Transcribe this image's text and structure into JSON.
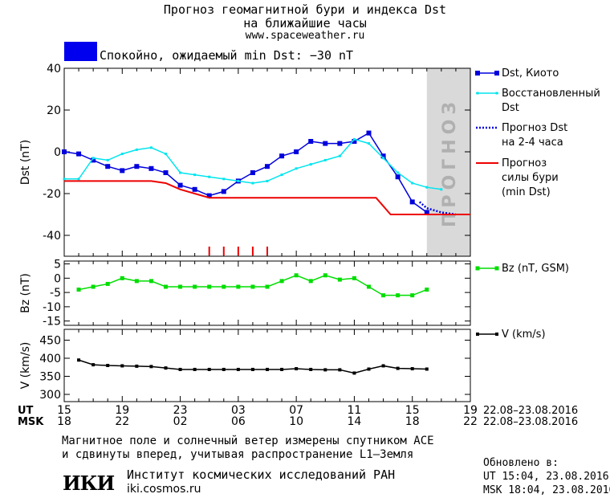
{
  "title": {
    "line1": "Прогноз геомагнитной бури и индекса Dst",
    "line2": "на ближайшие часы",
    "url": "www.spaceweather.ru"
  },
  "status": {
    "text": "Спокойно, ожидаемый min Dst: −30 nT",
    "color": "#0000ee"
  },
  "forecast_band_label": "ПРОГНОЗ",
  "colors": {
    "dst_kyoto": "#0000dd",
    "dst_restored": "#00e5ee",
    "dst_forecast": "#0000dd",
    "storm_forecast": "#ee0000",
    "bz": "#00dd00",
    "v": "#000000",
    "forecast_band": "#d9d9d9"
  },
  "chart_data": [
    {
      "type": "line",
      "name": "dst-panel",
      "ylabel": "Dst (nT)",
      "ylim": [
        -50,
        40
      ],
      "xlim": [
        15,
        43
      ],
      "yticks": [
        40,
        20,
        0,
        -20,
        -40
      ],
      "forecast_region": [
        40,
        43
      ],
      "series": [
        {
          "name": "Dst, Киото",
          "legend": [
            "Dst, Киото"
          ],
          "x": [
            15,
            16,
            17,
            18,
            19,
            20,
            21,
            22,
            23,
            24,
            25,
            26,
            27,
            28,
            29,
            30,
            31,
            32,
            33,
            34,
            35,
            36,
            37,
            38,
            39,
            40
          ],
          "y": [
            0,
            -1,
            -4,
            -7,
            -9,
            -7,
            -8,
            -10,
            -16,
            -18,
            -21,
            -19,
            -14,
            -10,
            -7,
            -2,
            0,
            5,
            4,
            4,
            5,
            9,
            -2,
            -12,
            -24,
            -29
          ]
        },
        {
          "name": "Восстановленный Dst",
          "legend": [
            "Восстановленный",
            "Dst"
          ],
          "x": [
            15,
            16,
            17,
            18,
            19,
            20,
            21,
            22,
            23,
            24,
            25,
            26,
            27,
            28,
            29,
            30,
            31,
            32,
            33,
            34,
            35,
            36,
            37,
            38,
            39,
            40,
            41
          ],
          "y": [
            -13,
            -13,
            -3,
            -4,
            -1,
            1,
            2,
            -1,
            -10,
            -11,
            -12,
            -13,
            -14,
            -15,
            -14,
            -11,
            -8,
            -6,
            -4,
            -2,
            6,
            4,
            -3,
            -10,
            -15,
            -17,
            -18
          ]
        },
        {
          "name": "Прогноз Dst на 2-4 часа",
          "legend": [
            "Прогноз Dst",
            "на 2-4 часа"
          ],
          "x": [
            39.5,
            40,
            41,
            42
          ],
          "y": [
            -24,
            -27,
            -29,
            -30
          ]
        },
        {
          "name": "Прогноз силы бури (min Dst)",
          "legend": [
            "Прогноз",
            "силы бури",
            "(min Dst)"
          ],
          "x": [
            15,
            21,
            22,
            23,
            25,
            36.5,
            37.5,
            43
          ],
          "y": [
            -14,
            -14,
            -15,
            -18,
            -22,
            -22,
            -30,
            -30
          ]
        }
      ],
      "storm_markers_x": [
        25,
        26,
        27,
        28,
        29
      ]
    },
    {
      "type": "line",
      "name": "bz-panel",
      "ylabel": "Bz (nT)",
      "ylim": [
        -16.5,
        6
      ],
      "xlim": [
        15,
        43
      ],
      "yticks": [
        5,
        0,
        -5,
        -10,
        -15
      ],
      "series": [
        {
          "name": "Bz (nT, GSM)",
          "legend": [
            "Bz (nT, GSM)"
          ],
          "x": [
            16,
            17,
            18,
            19,
            20,
            21,
            22,
            23,
            24,
            25,
            26,
            27,
            28,
            29,
            30,
            31,
            32,
            33,
            34,
            35,
            36,
            37,
            38,
            39,
            40
          ],
          "y": [
            -4,
            -3,
            -2,
            0,
            -1,
            -1,
            -3,
            -3,
            -3,
            -3,
            -3,
            -3,
            -3,
            -3,
            -1,
            1,
            -1,
            1,
            -0.5,
            0,
            -3,
            -6,
            -6,
            -6,
            -4
          ]
        }
      ]
    },
    {
      "type": "line",
      "name": "v-panel",
      "ylabel": "V (km/s)",
      "ylim": [
        280,
        480
      ],
      "xlim": [
        15,
        43
      ],
      "yticks": [
        450,
        400,
        350,
        300
      ],
      "series": [
        {
          "name": "V (km/s)",
          "legend": [
            "V (km/s)"
          ],
          "x": [
            16,
            17,
            18,
            19,
            20,
            21,
            22,
            23,
            24,
            25,
            26,
            27,
            28,
            29,
            30,
            31,
            32,
            33,
            34,
            35,
            36,
            37,
            38,
            39,
            40
          ],
          "y": [
            395,
            382,
            380,
            379,
            378,
            377,
            373,
            369,
            369,
            369,
            369,
            369,
            369,
            369,
            369,
            371,
            369,
            368,
            368,
            359,
            370,
            379,
            372,
            371,
            370
          ]
        }
      ]
    }
  ],
  "x_axis": {
    "ut_label": "UT",
    "msk_label": "MSK",
    "ut_ticks": [
      {
        "x": 15,
        "label": "15"
      },
      {
        "x": 19,
        "label": "19"
      },
      {
        "x": 23,
        "label": "23"
      },
      {
        "x": 27,
        "label": "03"
      },
      {
        "x": 31,
        "label": "07"
      },
      {
        "x": 35,
        "label": "11"
      },
      {
        "x": 39,
        "label": "15"
      },
      {
        "x": 43,
        "label": "19"
      }
    ],
    "msk_ticks": [
      {
        "x": 15,
        "label": "18"
      },
      {
        "x": 19,
        "label": "22"
      },
      {
        "x": 23,
        "label": "02"
      },
      {
        "x": 27,
        "label": "06"
      },
      {
        "x": 31,
        "label": "10"
      },
      {
        "x": 35,
        "label": "14"
      },
      {
        "x": 39,
        "label": "18"
      },
      {
        "x": 43,
        "label": "22"
      }
    ],
    "ut_range": "22.08–23.08.2016",
    "msk_range": "22.08–23.08.2016"
  },
  "footer": {
    "note1": "Магнитное поле и солнечный ветер измерены спутником ACE",
    "note2": "и сдвинуты вперед, учитывая распространение L1–Земля",
    "institute_logo": "ИКИ",
    "institute_name": "Институт космических исследований РАН",
    "institute_url": "iki.cosmos.ru",
    "updated_label": "Обновлено в:",
    "updated_ut": "UT  15:04, 23.08.2016",
    "updated_msk": "MSK 18:04, 23.08.2016"
  }
}
